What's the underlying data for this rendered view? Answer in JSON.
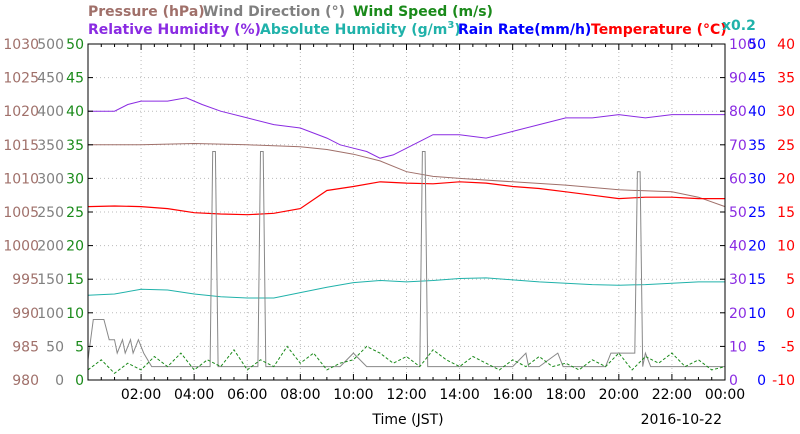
{
  "chart_data": {
    "type": "line",
    "xlabel": "Time (JST)",
    "date_label": "2016-10-22",
    "x_ticks": [
      "02:00",
      "04:00",
      "06:00",
      "08:00",
      "10:00",
      "12:00",
      "14:00",
      "16:00",
      "18:00",
      "20:00",
      "22:00",
      "00:00"
    ],
    "legend": {
      "pressure": "Pressure (hPa)",
      "wind_dir": "Wind Direction (°)",
      "wind_speed": "Wind Speed (m/s)",
      "rh": "Relative Humidity (%)",
      "ah_prefix": "Absolute Humidity (g/m",
      "ah_sup": "3",
      "ah_suffix": ")",
      "rain": "Rain Rate(mm/h)",
      "temp": "Temperature (°C)",
      "rain_scale": "x0.2"
    },
    "axes": {
      "pressure": {
        "range": [
          980,
          1030
        ],
        "ticks": [
          "1030",
          "1025",
          "1020",
          "1015",
          "1010",
          "1005",
          "1000",
          "995",
          "990",
          "985",
          "980"
        ],
        "color": "#a0706a"
      },
      "wind_dir": {
        "range": [
          0,
          500
        ],
        "ticks": [
          "500",
          "450",
          "400",
          "350",
          "300",
          "250",
          "200",
          "150",
          "100",
          "50",
          "0"
        ],
        "color": "#808080"
      },
      "wind_speed": {
        "range": [
          0,
          50
        ],
        "ticks": [
          "50",
          "45",
          "40",
          "35",
          "30",
          "25",
          "20",
          "15",
          "10",
          "5",
          "0"
        ],
        "color": "#1a8a1a"
      },
      "rh": {
        "range": [
          0,
          100
        ],
        "ticks": [
          "100",
          "90",
          "80",
          "70",
          "60",
          "50",
          "40",
          "30",
          "20",
          "10",
          "0"
        ],
        "color": "#8a2be2"
      },
      "rain": {
        "range": [
          0,
          50
        ],
        "ticks": [
          "50",
          "45",
          "40",
          "35",
          "30",
          "25",
          "20",
          "15",
          "10",
          "5",
          "0"
        ],
        "color": "#0000ff"
      },
      "temp": {
        "range": [
          -10,
          40
        ],
        "ticks": [
          "40",
          "35",
          "30",
          "25",
          "20",
          "15",
          "10",
          "5",
          "0",
          "-5",
          "-10"
        ],
        "color": "#ff0000"
      }
    },
    "series": [
      {
        "name": "Pressure (hPa)",
        "color": "#a0706a",
        "x": [
          0,
          2,
          4,
          6,
          8,
          9,
          10,
          11,
          12,
          13,
          14,
          16,
          18,
          20,
          22,
          23,
          24
        ],
        "y": [
          1015.0,
          1015.0,
          1015.2,
          1015.0,
          1014.7,
          1014.3,
          1013.6,
          1012.6,
          1011.0,
          1010.3,
          1010.0,
          1009.5,
          1009.0,
          1008.3,
          1008.0,
          1007.2,
          1005.8
        ]
      },
      {
        "name": "Relative Humidity (%)",
        "color": "#8a2be2",
        "x": [
          0,
          1,
          1.5,
          2,
          3,
          3.7,
          4.3,
          5,
          6,
          7,
          8,
          9,
          9.5,
          10,
          10.5,
          11,
          11.5,
          12,
          12.5,
          13,
          14,
          15,
          16,
          17,
          18,
          19,
          20,
          21,
          22,
          23,
          24
        ],
        "y": [
          80,
          80,
          82,
          83,
          83,
          84,
          82,
          80,
          78,
          76,
          75,
          72,
          70,
          69,
          68,
          66,
          67,
          69,
          71,
          73,
          73,
          72,
          74,
          76,
          78,
          78,
          79,
          78,
          79,
          79,
          79
        ]
      },
      {
        "name": "Absolute Humidity (g/m3)",
        "color": "#20b2aa",
        "x": [
          0,
          1,
          2,
          3,
          4,
          5,
          6,
          7,
          8,
          9,
          10,
          11,
          12,
          13,
          14,
          15,
          16,
          17,
          18,
          19,
          20,
          21,
          22,
          23,
          24
        ],
        "y": [
          12.6,
          12.8,
          13.5,
          13.4,
          12.8,
          12.4,
          12.2,
          12.2,
          13.0,
          13.8,
          14.5,
          14.8,
          14.6,
          14.8,
          15.1,
          15.2,
          14.9,
          14.6,
          14.4,
          14.2,
          14.1,
          14.2,
          14.4,
          14.6,
          14.6
        ]
      },
      {
        "name": "Temperature (°C)",
        "color": "#ff0000",
        "x": [
          0,
          1,
          2,
          3,
          4,
          5,
          6,
          7,
          8,
          9,
          10,
          11,
          12,
          13,
          14,
          15,
          16,
          17,
          18,
          19,
          20,
          21,
          22,
          23,
          24
        ],
        "y": [
          15.8,
          15.9,
          15.8,
          15.5,
          14.9,
          14.7,
          14.6,
          14.8,
          15.5,
          18.2,
          18.8,
          19.5,
          19.3,
          19.2,
          19.5,
          19.3,
          18.8,
          18.5,
          18.0,
          17.5,
          17.0,
          17.2,
          17.2,
          17.0,
          17.0
        ]
      },
      {
        "name": "Wind Direction (°)",
        "color": "#888888",
        "x": [
          0,
          0.2,
          0.6,
          0.8,
          1.0,
          1.1,
          1.3,
          1.4,
          1.6,
          1.7,
          1.9,
          2.1,
          2.4,
          3.0,
          3.6,
          4.2,
          4.6,
          4.7,
          4.8,
          4.9,
          5.0,
          6.0,
          6.4,
          6.5,
          6.6,
          6.7,
          6.8,
          8.0,
          9.5,
          10.0,
          10.5,
          11.0,
          12.0,
          12.3,
          12.5,
          12.6,
          12.7,
          12.8,
          14.0,
          16.0,
          16.5,
          16.6,
          16.7,
          17.0,
          17.7,
          17.9,
          18.0,
          19.0,
          19.5,
          19.7,
          19.9,
          20.3,
          20.6,
          20.7,
          20.8,
          20.9,
          21.0,
          21.2,
          21.4,
          22.0,
          23.0,
          24.0
        ],
        "y": [
          30,
          90,
          90,
          60,
          60,
          40,
          60,
          40,
          60,
          40,
          60,
          40,
          20,
          20,
          20,
          20,
          20,
          340,
          340,
          20,
          20,
          20,
          20,
          340,
          340,
          20,
          20,
          20,
          20,
          40,
          20,
          20,
          20,
          20,
          20,
          340,
          340,
          20,
          20,
          20,
          40,
          20,
          20,
          20,
          40,
          20,
          20,
          20,
          20,
          40,
          40,
          40,
          40,
          310,
          310,
          20,
          40,
          20,
          20,
          20,
          20,
          20
        ]
      },
      {
        "name": "Wind Speed (m/s)",
        "color": "#1a8a1a",
        "x": [
          0,
          0.5,
          1,
          1.5,
          2,
          2.5,
          3,
          3.5,
          4,
          4.5,
          5,
          5.5,
          6,
          6.5,
          7,
          7.5,
          8,
          8.5,
          9,
          9.5,
          10,
          10.5,
          11,
          11.5,
          12,
          12.5,
          13,
          13.5,
          14,
          14.5,
          15,
          15.5,
          16,
          16.5,
          17,
          17.5,
          18,
          18.5,
          19,
          19.5,
          20,
          20.5,
          21,
          21.5,
          22,
          22.5,
          23,
          23.5,
          24
        ],
        "y": [
          1.5,
          3,
          1,
          2.5,
          1.5,
          3.5,
          2,
          4,
          1.5,
          3,
          2,
          4.5,
          1.5,
          3,
          2,
          5,
          2.5,
          4,
          1.5,
          2.5,
          3,
          5,
          4,
          2.5,
          3.5,
          2,
          4.5,
          3,
          2,
          3.5,
          2.5,
          1.5,
          3,
          2,
          3.5,
          2,
          2.5,
          1.5,
          3,
          2,
          4,
          1.5,
          3.5,
          2.5,
          4,
          2,
          3,
          1.5,
          2
        ]
      },
      {
        "name": "Rain Rate(mm/h)",
        "color": "#0000ff",
        "x": [
          0,
          24
        ],
        "y": [
          0,
          0
        ]
      }
    ]
  }
}
